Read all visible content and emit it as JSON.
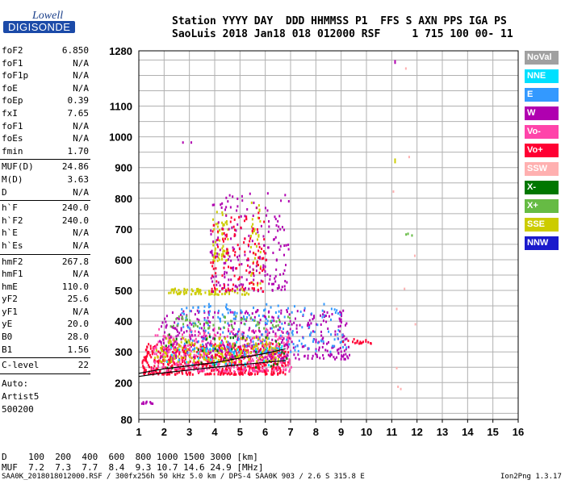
{
  "logo": {
    "line1": "Lowell",
    "line2": "DIGISONDE"
  },
  "header": {
    "line1": "Station YYYY DAY  DDD HHMMSS P1  FFS S AXN PPS IGA PS",
    "line2": "SaoLuis 2018 Jan18 018 012000 RSF     1 715 100 00- 11"
  },
  "params": [
    {
      "k": "foF2",
      "v": "6.850"
    },
    {
      "k": "foF1",
      "v": "N/A"
    },
    {
      "k": "foF1p",
      "v": "N/A"
    },
    {
      "k": "foE",
      "v": "N/A"
    },
    {
      "k": "foEp",
      "v": "0.39"
    },
    {
      "k": "fxI",
      "v": "7.65"
    },
    {
      "k": "foF1",
      "v": "N/A"
    },
    {
      "k": "foEs",
      "v": "N/A"
    },
    {
      "k": "fmin",
      "v": "1.70"
    },
    {
      "sep": true
    },
    {
      "k": "MUF(D)",
      "v": "24.86"
    },
    {
      "k": "M(D)",
      "v": "3.63"
    },
    {
      "k": "D",
      "v": "N/A"
    },
    {
      "sep": true
    },
    {
      "k": "h`F",
      "v": "240.0"
    },
    {
      "k": "h`F2",
      "v": "240.0"
    },
    {
      "k": "h`E",
      "v": "N/A"
    },
    {
      "k": "h`Es",
      "v": "N/A"
    },
    {
      "sep": true
    },
    {
      "k": "hmF2",
      "v": "267.8"
    },
    {
      "k": "hmF1",
      "v": "N/A"
    },
    {
      "k": "hmE",
      "v": "110.0"
    },
    {
      "k": "yF2",
      "v": "25.6"
    },
    {
      "k": "yF1",
      "v": "N/A"
    },
    {
      "k": "yE",
      "v": "20.0"
    },
    {
      "k": "B0",
      "v": "28.0"
    },
    {
      "k": "B1",
      "v": "1.56"
    },
    {
      "sep": true
    },
    {
      "k": "C-level",
      "v": "22"
    },
    {
      "sep": true
    }
  ],
  "auto": [
    "Auto:",
    "Artist5",
    "500200"
  ],
  "legend": [
    {
      "label": "NoVal",
      "color": "#a0a0a0"
    },
    {
      "label": "NNE",
      "color": "#00e0ff"
    },
    {
      "label": "E",
      "color": "#3399ff"
    },
    {
      "label": "W",
      "color": "#b000b0"
    },
    {
      "label": "Vo-",
      "color": "#ff44aa"
    },
    {
      "label": "Vo+",
      "color": "#ff0033"
    },
    {
      "label": "SSW",
      "color": "#ffb0b0"
    },
    {
      "label": "X-",
      "color": "#007700"
    },
    {
      "label": "X+",
      "color": "#66bb44"
    },
    {
      "label": "SSE",
      "color": "#cccc00"
    },
    {
      "label": "NNW",
      "color": "#1a1acc"
    }
  ],
  "muf_table": {
    "line1": "D    100  200  400  600  800 1000 1500 3000 [km]",
    "line2": "MUF  7.2  7.3  7.7  8.4  9.3 10.7 14.6 24.9 [MHz]"
  },
  "footer": {
    "left": "SAA0K_2018018012000.RSF / 300fx256h 50 kHz 5.0 km / DPS-4 SAA0K 903 / 2.6 S 315.8 E",
    "right": "Ion2Png 1.3.17"
  },
  "chart_data": {
    "type": "scatter",
    "xlim": [
      1,
      16
    ],
    "ylim": [
      80,
      1280
    ],
    "x_ticks": [
      1,
      2,
      3,
      4,
      5,
      6,
      7,
      8,
      9,
      10,
      11,
      12,
      13,
      14,
      15,
      16
    ],
    "y_ticks": [
      80,
      200,
      300,
      400,
      500,
      600,
      700,
      800,
      900,
      1000,
      1100,
      1280
    ],
    "grid": true,
    "trace_lines": [
      {
        "name": "",
        "points": [
          [
            1,
            230
          ],
          [
            2,
            245
          ],
          [
            3,
            255
          ],
          [
            4,
            265
          ],
          [
            5,
            280
          ],
          [
            6,
            295
          ],
          [
            6.8,
            310
          ]
        ]
      },
      {
        "name": "",
        "points": [
          [
            1,
            220
          ],
          [
            2,
            232
          ],
          [
            3,
            241
          ],
          [
            4,
            250
          ],
          [
            5,
            258
          ],
          [
            6,
            266
          ],
          [
            6.8,
            272
          ]
        ]
      }
    ],
    "clusters": [
      {
        "color": "#ff0033",
        "x": [
          1.1,
          6.9
        ],
        "y": [
          230,
          330
        ],
        "n": 650
      },
      {
        "color": "#ff44aa",
        "x": [
          1.5,
          7.0
        ],
        "y": [
          240,
          380
        ],
        "n": 380
      },
      {
        "color": "#b000b0",
        "x": [
          1.8,
          9.3
        ],
        "y": [
          280,
          440
        ],
        "n": 420
      },
      {
        "color": "#3399ff",
        "x": [
          2.5,
          9.2
        ],
        "y": [
          300,
          460
        ],
        "n": 220
      },
      {
        "color": "#cccc00",
        "x": [
          1.6,
          6.5
        ],
        "y": [
          270,
          350
        ],
        "n": 180
      },
      {
        "color": "#cccc00",
        "x": [
          2.1,
          5.4
        ],
        "y": [
          490,
          510
        ],
        "n": 80
      },
      {
        "color": "#cccc00",
        "x": [
          3.9,
          4.5
        ],
        "y": [
          600,
          760
        ],
        "n": 60
      },
      {
        "color": "#cccc00",
        "x": [
          5.4,
          5.8
        ],
        "y": [
          520,
          800
        ],
        "n": 40
      },
      {
        "color": "#b000b0",
        "x": [
          3.8,
          6.9
        ],
        "y": [
          500,
          820
        ],
        "n": 200
      },
      {
        "color": "#ff0033",
        "x": [
          3.8,
          6.0
        ],
        "y": [
          500,
          760
        ],
        "n": 120
      },
      {
        "color": "#66bb44",
        "x": [
          2.2,
          7.0
        ],
        "y": [
          380,
          420
        ],
        "n": 60
      },
      {
        "color": "#007700",
        "x": [
          2.0,
          7.0
        ],
        "y": [
          250,
          360
        ],
        "n": 40
      },
      {
        "color": "#00e0ff",
        "x": [
          2.0,
          6.8
        ],
        "y": [
          260,
          340
        ],
        "n": 40
      },
      {
        "color": "#ff0033",
        "x": [
          9.0,
          10.2
        ],
        "y": [
          330,
          345
        ],
        "n": 18
      },
      {
        "color": "#ffb0b0",
        "x": [
          11.0,
          12.0
        ],
        "y": [
          170,
          1230
        ],
        "n": 10
      },
      {
        "color": "#b000b0",
        "x": [
          11.1,
          11.1
        ],
        "y": [
          1240,
          1250
        ],
        "n": 2
      },
      {
        "color": "#cccc00",
        "x": [
          11.1,
          11.1
        ],
        "y": [
          910,
          930
        ],
        "n": 2
      },
      {
        "color": "#66bb44",
        "x": [
          11.5,
          11.8
        ],
        "y": [
          670,
          690
        ],
        "n": 3
      },
      {
        "color": "#b000b0",
        "x": [
          1.0,
          1.6
        ],
        "y": [
          135,
          142
        ],
        "n": 10
      },
      {
        "color": "#b000b0",
        "x": [
          2.7,
          3.9
        ],
        "y": [
          960,
          1010
        ],
        "n": 2
      }
    ]
  }
}
